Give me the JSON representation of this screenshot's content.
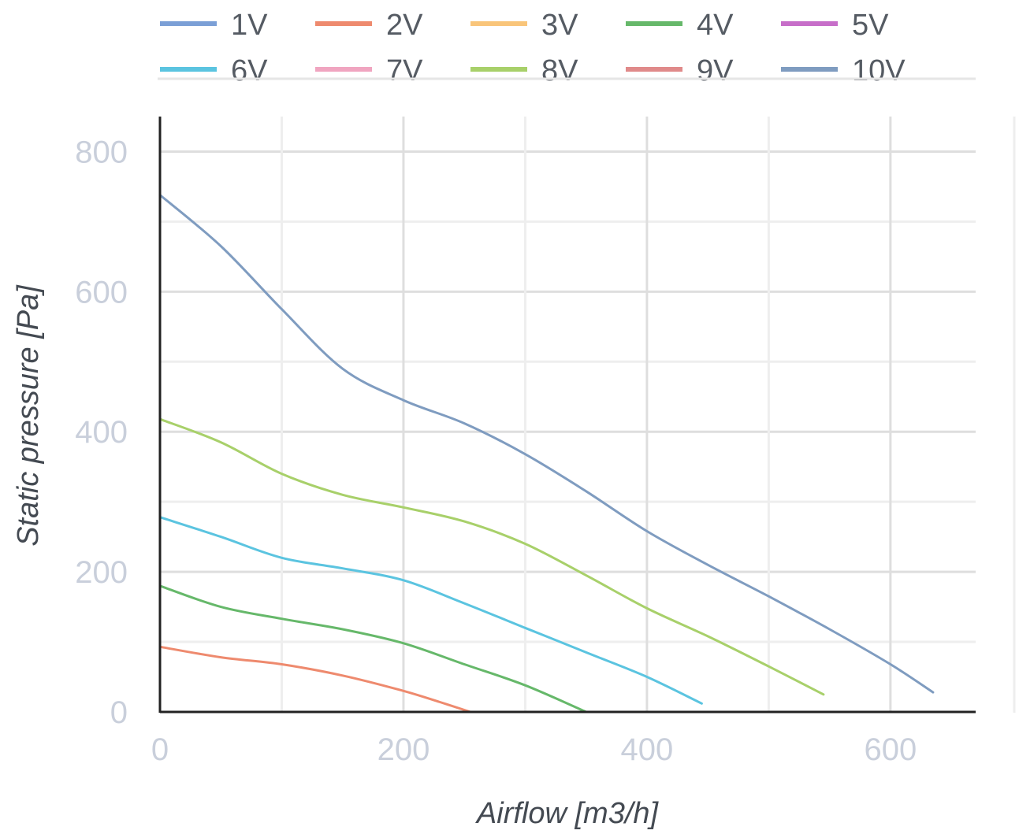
{
  "chart_data": {
    "type": "line",
    "xlabel": "Airflow [m3/h]",
    "ylabel": "Static pressure [Pa]",
    "xlim": [
      0,
      670
    ],
    "ylim": [
      0,
      850
    ],
    "x_ticks": [
      "0",
      "200",
      "400",
      "600"
    ],
    "y_ticks": [
      "0",
      "200",
      "400",
      "600",
      "800"
    ],
    "grid": true,
    "legend_position": "top",
    "series": [
      {
        "name": "1V",
        "color": "#7b9fd6",
        "x": [],
        "y": []
      },
      {
        "name": "2V",
        "color": "#ee8a6e",
        "x": [
          0,
          50,
          100,
          150,
          200,
          230,
          255
        ],
        "y": [
          93,
          78,
          68,
          52,
          30,
          14,
          0
        ]
      },
      {
        "name": "3V",
        "color": "#f9c57a",
        "x": [],
        "y": []
      },
      {
        "name": "4V",
        "color": "#66b86a",
        "x": [
          0,
          50,
          100,
          150,
          200,
          250,
          300,
          350
        ],
        "y": [
          180,
          150,
          133,
          118,
          98,
          68,
          38,
          0
        ]
      },
      {
        "name": "5V",
        "color": "#c76ec9",
        "x": [],
        "y": []
      },
      {
        "name": "6V",
        "color": "#5bc4e0",
        "x": [
          0,
          50,
          100,
          150,
          200,
          250,
          300,
          350,
          400,
          445
        ],
        "y": [
          278,
          250,
          220,
          205,
          188,
          155,
          120,
          85,
          50,
          12
        ]
      },
      {
        "name": "7V",
        "color": "#f0a5c0",
        "x": [],
        "y": []
      },
      {
        "name": "8V",
        "color": "#a8d06a",
        "x": [
          0,
          50,
          100,
          150,
          200,
          250,
          300,
          350,
          400,
          450,
          500,
          545
        ],
        "y": [
          418,
          385,
          340,
          310,
          292,
          272,
          240,
          195,
          148,
          108,
          65,
          25
        ]
      },
      {
        "name": "9V",
        "color": "#e08a8a",
        "x": [],
        "y": []
      },
      {
        "name": "10V",
        "color": "#7f9cc0",
        "x": [
          0,
          50,
          100,
          150,
          200,
          250,
          300,
          350,
          400,
          450,
          500,
          550,
          600,
          635
        ],
        "y": [
          738,
          665,
          575,
          490,
          445,
          412,
          368,
          315,
          258,
          210,
          165,
          118,
          68,
          28
        ]
      }
    ]
  }
}
